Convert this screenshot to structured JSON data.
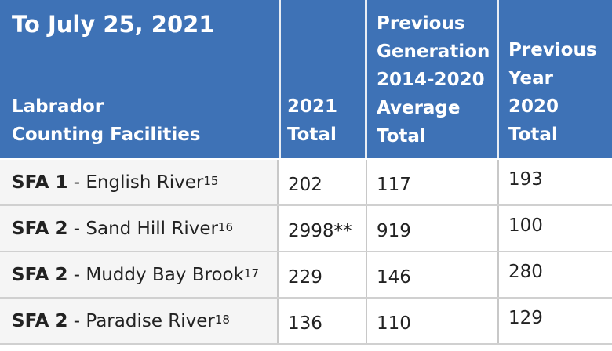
{
  "header": {
    "title": "To July 25, 2021",
    "facility_label_line1": "Labrador",
    "facility_label_line2": "Counting Facilities",
    "col_2021_line1": "2021",
    "col_2021_line2": "Total",
    "col_prev_gen_line1": "Previous",
    "col_prev_gen_line2": "Generation",
    "col_prev_gen_line3": "2014-2020",
    "col_prev_gen_line4": "Average",
    "col_prev_gen_line5": "Total",
    "col_prev_year_line1": "Previous",
    "col_prev_year_line2": "Year",
    "col_prev_year_line3": "2020",
    "col_prev_year_line4": "Total"
  },
  "rows": [
    {
      "sfa": "SFA 1",
      "river": " - English River",
      "note": "15",
      "total_2021": "202",
      "prev_gen_avg": "117",
      "prev_year": "193"
    },
    {
      "sfa": "SFA 2",
      "river": " - Sand Hill River",
      "note": "16",
      "total_2021": "2998**",
      "prev_gen_avg": "919",
      "prev_year": "100"
    },
    {
      "sfa": "SFA 2",
      "river": " - Muddy Bay Brook",
      "note": "17",
      "total_2021": "229",
      "prev_gen_avg": "146",
      "prev_year": "280"
    },
    {
      "sfa": "SFA 2",
      "river": " - Paradise River",
      "note": "18",
      "total_2021": "136",
      "prev_gen_avg": "110",
      "prev_year": "129"
    }
  ],
  "colors": {
    "header_bg": "#3e72b6",
    "header_text": "#ffffff",
    "first_col_bg": "#f5f5f5"
  }
}
